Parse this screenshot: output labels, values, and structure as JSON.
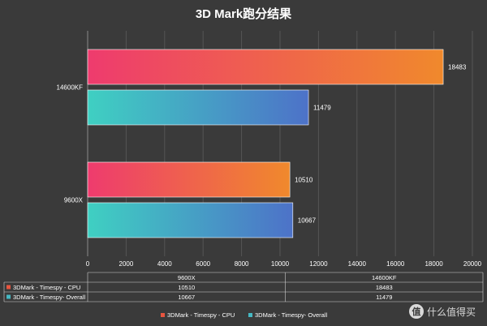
{
  "chart_data": {
    "type": "bar",
    "orientation": "horizontal",
    "title": "3D Mark跑分结果",
    "categories": [
      "9600X",
      "14600KF"
    ],
    "series": [
      {
        "name": "3DMark - Timespy - CPU",
        "values": [
          10510,
          18483
        ],
        "gradient": [
          "#ee3b6e",
          "#f0892c"
        ],
        "swatch": "#e8553f"
      },
      {
        "name": "3DMark - Timespy- Overall",
        "values": [
          10667,
          11479
        ],
        "gradient": [
          "#3fd0c2",
          "#4d72c8"
        ],
        "swatch": "#45b8c3"
      }
    ],
    "x_ticks": [
      0,
      2000,
      4000,
      6000,
      8000,
      10000,
      12000,
      14000,
      16000,
      18000,
      20000
    ],
    "xlim": [
      0,
      20000
    ],
    "grid": "vertical",
    "data_table": true,
    "legend_position": "bottom-center"
  },
  "watermark": "值 什么值得买"
}
